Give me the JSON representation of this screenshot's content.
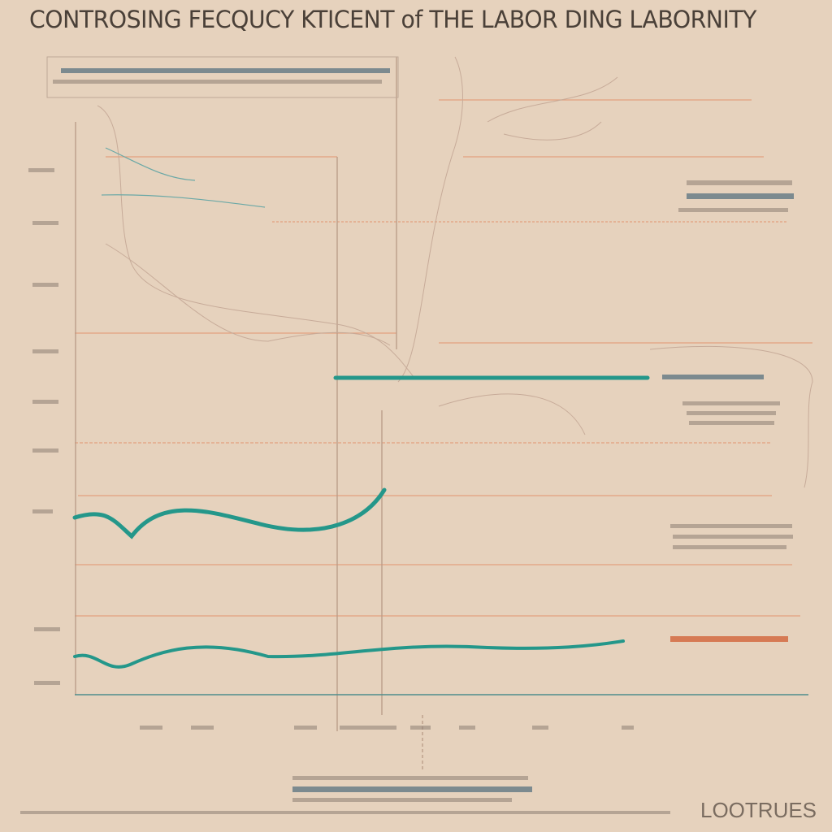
{
  "header": {
    "title": "CONTROSING FECQUCY KTICENT of THE LABOR DING LABORNITY"
  },
  "footer": {
    "logo": "LOOTRUES"
  }
}
